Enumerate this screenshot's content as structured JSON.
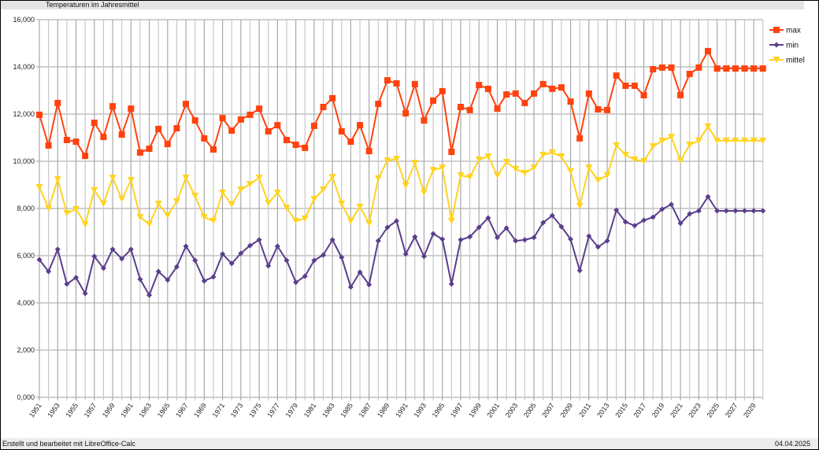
{
  "header": {
    "title": "Temperaturen im Jahresmittel"
  },
  "footer": {
    "left_text": "Erstellt und bearbeitet mit LibreOffice-Calc",
    "date": "04.04.2025"
  },
  "colors": {
    "max": "#ff420e",
    "min": "#5a3e8c",
    "mittel": "#ffd320",
    "grid": "#b3b3b3",
    "header_bg": "#e4e4e4"
  },
  "chart_data": {
    "type": "line",
    "title": "Temperaturen im Jahresmittel",
    "xlabel": "",
    "ylabel": "",
    "ylim": [
      0,
      16
    ],
    "yticks": [
      "0,000",
      "2,000",
      "4,000",
      "6,000",
      "8,000",
      "10,000",
      "12,000",
      "14,000",
      "16,000"
    ],
    "grid": true,
    "legend_position": "right",
    "x": [
      1951,
      1952,
      1953,
      1954,
      1955,
      1956,
      1957,
      1958,
      1959,
      1960,
      1961,
      1962,
      1963,
      1964,
      1965,
      1966,
      1967,
      1968,
      1969,
      1970,
      1971,
      1972,
      1973,
      1974,
      1975,
      1976,
      1977,
      1978,
      1979,
      1980,
      1981,
      1982,
      1983,
      1984,
      1985,
      1986,
      1987,
      1988,
      1989,
      1990,
      1991,
      1992,
      1993,
      1994,
      1995,
      1996,
      1997,
      1998,
      1999,
      2000,
      2001,
      2002,
      2003,
      2004,
      2005,
      2006,
      2007,
      2008,
      2009,
      2010,
      2011,
      2012,
      2013,
      2014,
      2015,
      2016,
      2017,
      2018,
      2019,
      2020,
      2021,
      2022,
      2023,
      2024,
      2025,
      2026,
      2027,
      2028,
      2029,
      2030
    ],
    "xtick_labels": [
      "1951",
      "1953",
      "1955",
      "1957",
      "1959",
      "1961",
      "1963",
      "1965",
      "1967",
      "1969",
      "1971",
      "1973",
      "1975",
      "1977",
      "1979",
      "1981",
      "1983",
      "1985",
      "1987",
      "1989",
      "1991",
      "1993",
      "1995",
      "1997",
      "1999",
      "2001",
      "2003",
      "2005",
      "2007",
      "2009",
      "2011",
      "2013",
      "2015",
      "2017",
      "2019",
      "2021",
      "2023",
      "2025",
      "2027",
      "2029"
    ],
    "series": [
      {
        "name": "max",
        "marker": "square",
        "values": [
          11.97,
          10.67,
          12.47,
          10.9,
          10.83,
          10.23,
          11.63,
          11.03,
          12.33,
          11.13,
          12.23,
          10.37,
          10.53,
          11.37,
          10.73,
          11.4,
          12.43,
          11.73,
          10.97,
          10.5,
          11.83,
          11.3,
          11.77,
          11.97,
          12.23,
          11.27,
          11.53,
          10.9,
          10.7,
          10.57,
          11.5,
          12.3,
          12.67,
          11.27,
          10.83,
          11.53,
          10.43,
          12.43,
          13.43,
          13.3,
          12.03,
          13.27,
          11.73,
          12.57,
          12.97,
          10.4,
          12.3,
          12.17,
          13.23,
          13.07,
          12.23,
          12.83,
          12.87,
          12.47,
          12.87,
          13.27,
          13.07,
          13.13,
          12.53,
          10.97,
          12.87,
          12.2,
          12.17,
          13.63,
          13.2,
          13.2,
          12.8,
          13.9,
          13.97,
          13.97,
          12.8,
          13.7,
          13.97,
          14.67,
          13.93,
          13.93,
          13.93,
          13.93,
          13.93,
          13.93
        ]
      },
      {
        "name": "min",
        "marker": "diamond",
        "values": [
          5.83,
          5.33,
          6.27,
          4.8,
          5.07,
          4.4,
          5.97,
          5.47,
          6.27,
          5.87,
          6.27,
          5.0,
          4.33,
          5.33,
          4.97,
          5.53,
          6.4,
          5.8,
          4.93,
          5.1,
          6.07,
          5.67,
          6.1,
          6.43,
          6.67,
          5.57,
          6.4,
          5.8,
          4.87,
          5.13,
          5.8,
          6.03,
          6.67,
          5.93,
          4.67,
          5.3,
          4.77,
          6.63,
          7.2,
          7.47,
          6.07,
          6.8,
          5.97,
          6.93,
          6.7,
          4.8,
          6.67,
          6.8,
          7.2,
          7.6,
          6.77,
          7.17,
          6.63,
          6.67,
          6.77,
          7.4,
          7.7,
          7.23,
          6.7,
          5.37,
          6.83,
          6.37,
          6.63,
          7.93,
          7.43,
          7.27,
          7.5,
          7.63,
          7.97,
          8.17,
          7.37,
          7.77,
          7.9,
          8.5,
          7.9,
          7.9,
          7.9,
          7.9,
          7.9,
          7.9
        ]
      },
      {
        "name": "mittel",
        "marker": "triangle-down",
        "values": [
          8.9,
          8.0,
          9.23,
          7.8,
          7.97,
          7.33,
          8.77,
          8.2,
          9.3,
          8.4,
          9.2,
          7.63,
          7.33,
          8.2,
          7.7,
          8.3,
          9.3,
          8.53,
          7.63,
          7.47,
          8.67,
          8.17,
          8.8,
          9.03,
          9.3,
          8.23,
          8.67,
          8.03,
          7.47,
          7.57,
          8.4,
          8.8,
          9.33,
          8.2,
          7.47,
          8.07,
          7.37,
          9.27,
          10.03,
          10.1,
          8.97,
          9.93,
          8.67,
          9.63,
          9.73,
          7.47,
          9.4,
          9.33,
          10.07,
          10.2,
          9.4,
          9.97,
          9.67,
          9.5,
          9.73,
          10.27,
          10.37,
          10.2,
          9.57,
          8.1,
          9.73,
          9.2,
          9.4,
          10.67,
          10.27,
          10.07,
          10.0,
          10.63,
          10.87,
          11.03,
          10.03,
          10.7,
          10.87,
          11.47,
          10.87,
          10.87,
          10.87,
          10.87,
          10.87,
          10.87
        ]
      }
    ]
  }
}
